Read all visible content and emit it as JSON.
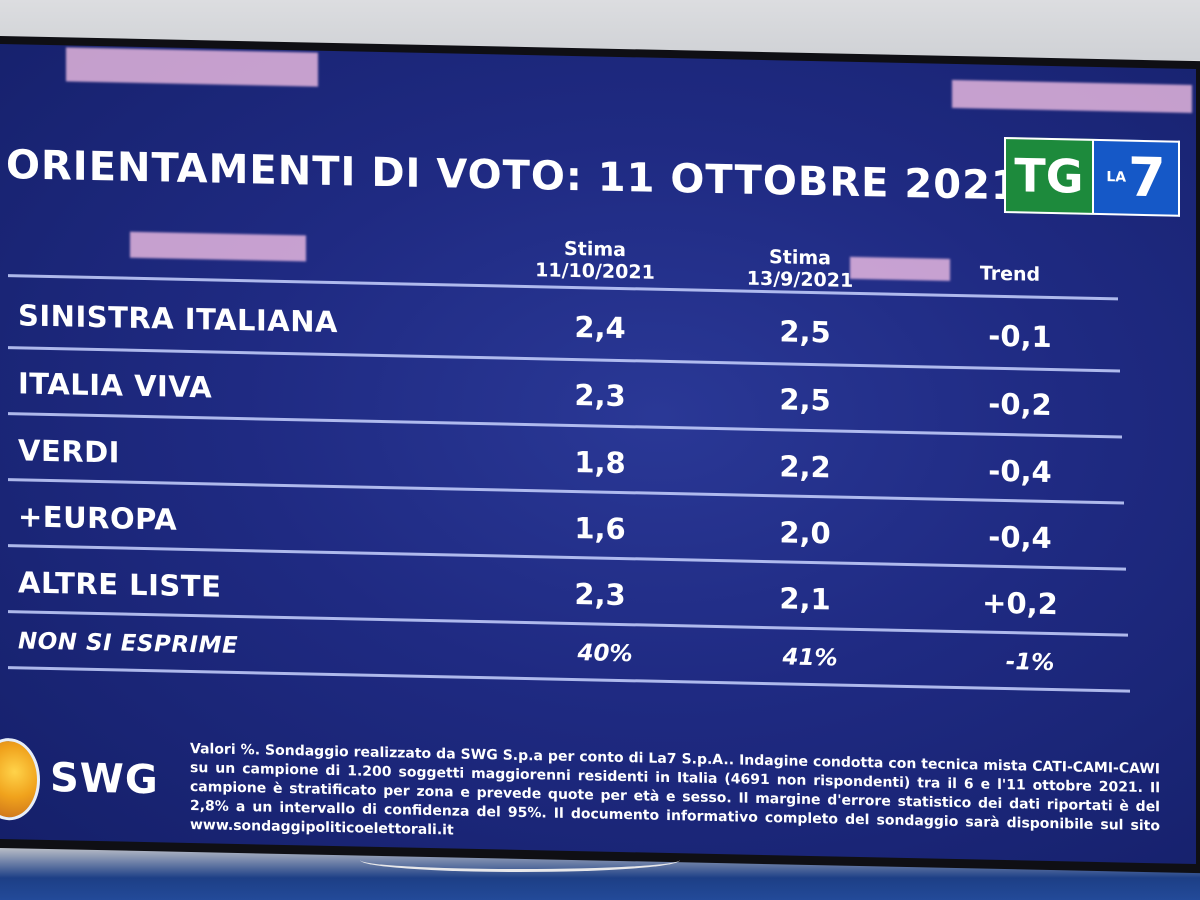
{
  "title": "ORIENTAMENTI DI VOTO: 11 OTTOBRE 2021",
  "logo": {
    "tg": "TG",
    "la": "LA",
    "seven": "7"
  },
  "columns": {
    "current": {
      "line1": "Stima",
      "line2": "11/10/2021"
    },
    "previous": {
      "line1": "Stima",
      "line2": "13/9/2021"
    },
    "trend": "Trend"
  },
  "rows": [
    {
      "party": "SINISTRA ITALIANA",
      "current": "2,4",
      "previous": "2,5",
      "trend": "-0,1"
    },
    {
      "party": "ITALIA VIVA",
      "current": "2,3",
      "previous": "2,5",
      "trend": "-0,2"
    },
    {
      "party": "VERDI",
      "current": "1,8",
      "previous": "2,2",
      "trend": "-0,4"
    },
    {
      "party": "+EUROPA",
      "current": "1,6",
      "previous": "2,0",
      "trend": "-0,4"
    },
    {
      "party": "ALTRE LISTE",
      "current": "2,3",
      "previous": "2,1",
      "trend": "+0,2"
    },
    {
      "party": "NON SI ESPRIME",
      "current": "40%",
      "previous": "41%",
      "trend": "-1%"
    }
  ],
  "pollster": "SWG",
  "footnote": "Valori %. Sondaggio realizzato da SWG S.p.a per conto di La7 S.p.A.. Indagine condotta con tecnica mista CATI-CAMI-CAWI su un campione di 1.200 soggetti maggiorenni residenti in Italia (4691 non rispondenti) tra il 6 e l'11 ottobre 2021. Il campione è stratificato per zona e prevede quote per età e sesso. Il margine d'errore statistico dei dati riportati è del 2,8% a un intervallo di confidenza del 95%. Il documento informativo completo del sondaggio sarà disponibile sul sito www.sondaggipoliticoelettorali.it",
  "colors": {
    "panel": "#1f2a82",
    "tg_green": "#1d8a3c",
    "la7_blue": "#1558c7",
    "text": "#ffffff"
  }
}
